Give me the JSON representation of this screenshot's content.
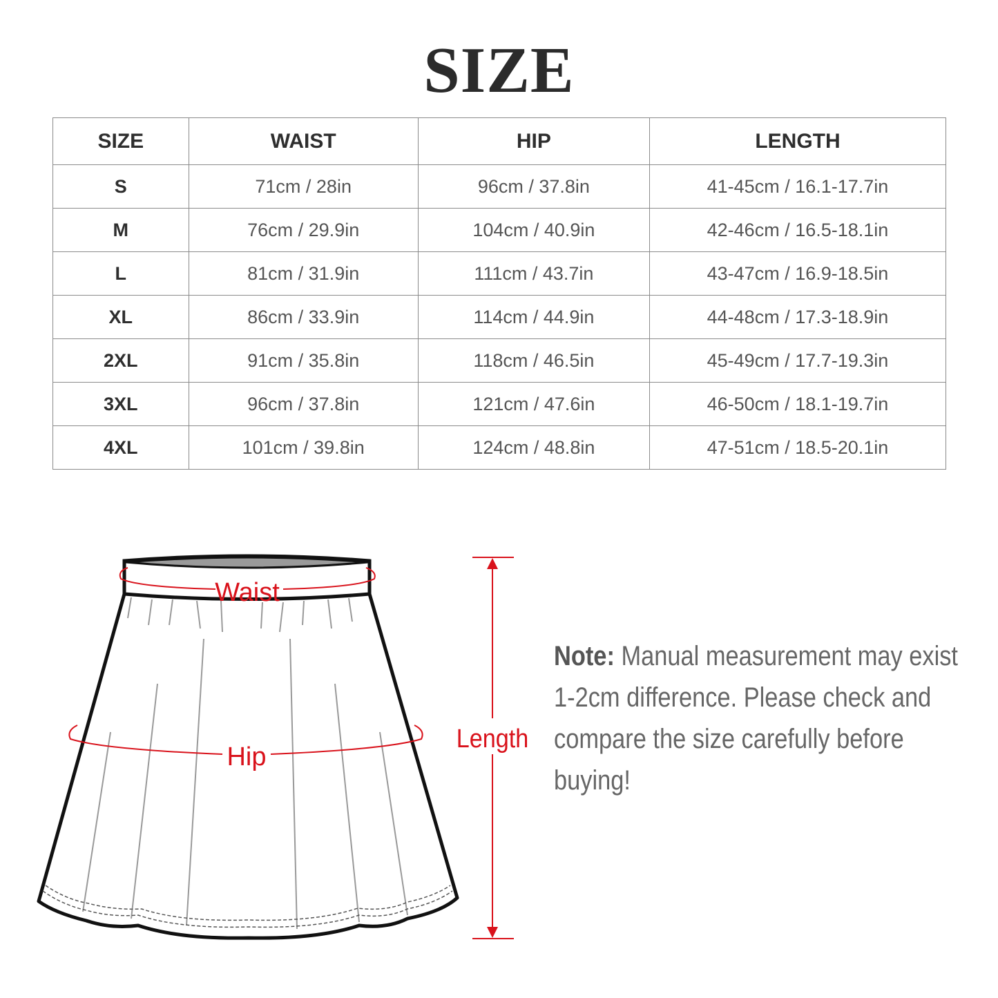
{
  "title": "SIZE",
  "table": {
    "headers": [
      "SIZE",
      "WAIST",
      "HIP",
      "LENGTH"
    ],
    "rows": [
      [
        "S",
        "71cm / 28in",
        "96cm / 37.8in",
        "41-45cm / 16.1-17.7in"
      ],
      [
        "M",
        "76cm / 29.9in",
        "104cm / 40.9in",
        "42-46cm / 16.5-18.1in"
      ],
      [
        "L",
        "81cm / 31.9in",
        "111cm / 43.7in",
        "43-47cm / 16.9-18.5in"
      ],
      [
        "XL",
        "86cm / 33.9in",
        "114cm / 44.9in",
        "44-48cm / 17.3-18.9in"
      ],
      [
        "2XL",
        "91cm / 35.8in",
        "118cm / 46.5in",
        "45-49cm / 17.7-19.3in"
      ],
      [
        "3XL",
        "96cm / 37.8in",
        "121cm / 47.6in",
        "46-50cm / 18.1-19.7in"
      ],
      [
        "4XL",
        "101cm / 39.8in",
        "124cm / 48.8in",
        "47-51cm / 18.5-20.1in"
      ]
    ]
  },
  "diagram": {
    "waist_label": "Waist",
    "hip_label": "Hip",
    "length_label": "Length",
    "accent_color": "#d9121b"
  },
  "note": {
    "label": "Note:",
    "text": " Manual measurement may exist 1-2cm difference. Please check and compare the size carefully before buying!"
  }
}
